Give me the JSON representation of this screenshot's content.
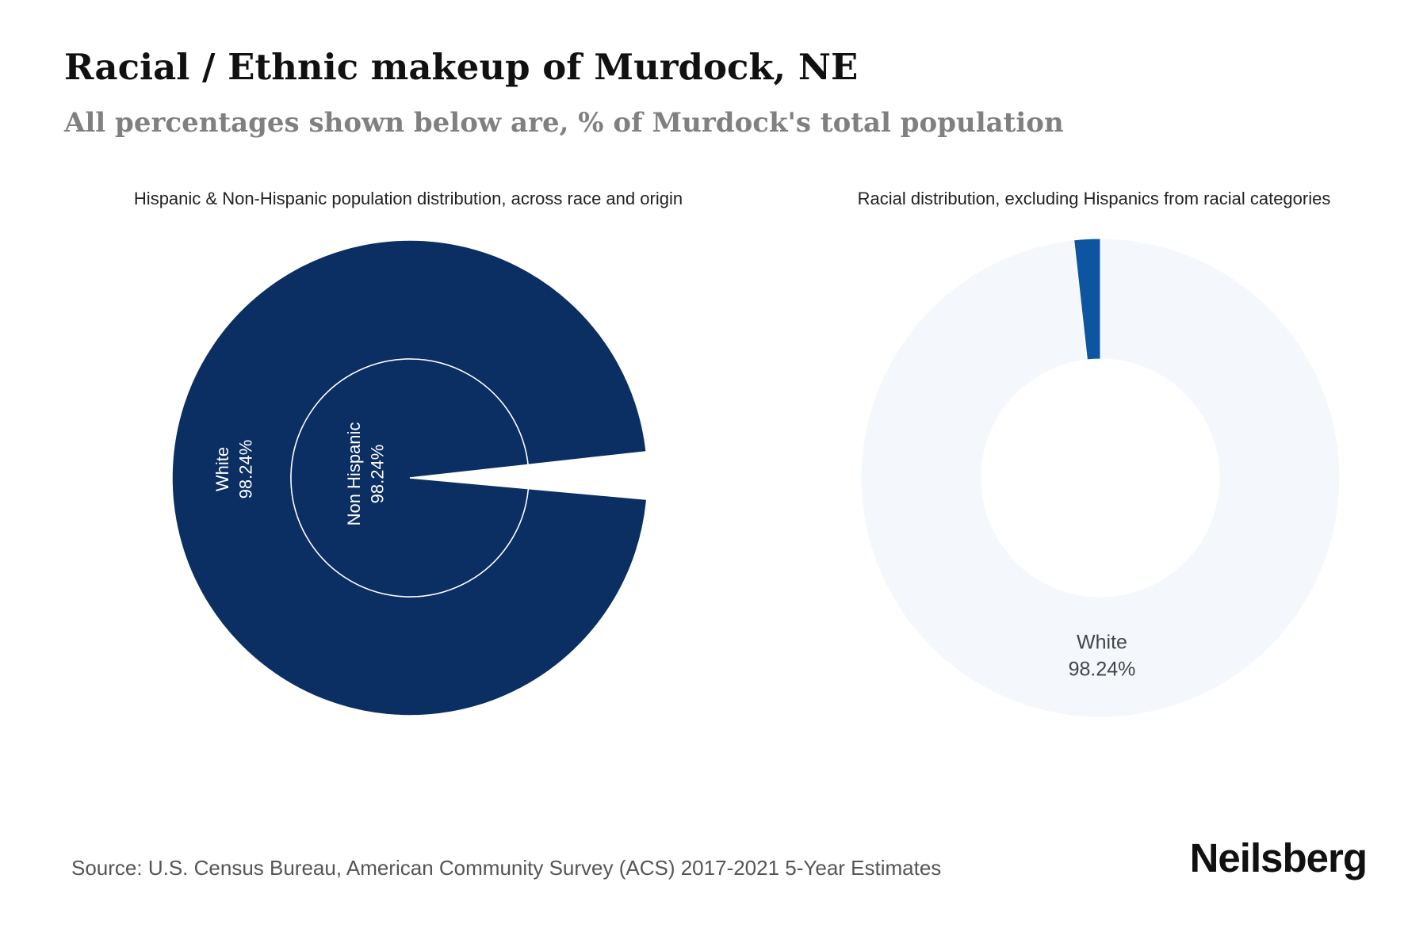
{
  "header": {
    "title": "Racial / Ethnic makeup of Murdock, NE",
    "subtitle": "All percentages shown below are, % of Murdock's total population"
  },
  "chart_data": [
    {
      "type": "pie",
      "title": "Hispanic & Non-Hispanic population distribution, across race and origin",
      "rings": {
        "inner": [
          {
            "label": "Non Hispanic",
            "value": 98.24,
            "value_label": "98.24%",
            "color": "#0b2e63"
          },
          {
            "label": "",
            "value": 1.76,
            "value_label": "",
            "color": "#ffffff"
          }
        ],
        "outer": [
          {
            "label": "White",
            "value": 98.24,
            "value_label": "98.24%",
            "color": "#0b2e63"
          },
          {
            "label": "",
            "value": 1.76,
            "value_label": "",
            "color": "#ffffff"
          }
        ]
      }
    },
    {
      "type": "pie",
      "title": "Racial distribution, excluding Hispanics from racial categories",
      "donut": true,
      "slices": [
        {
          "label": "White",
          "value": 98.24,
          "value_label": "98.24%",
          "color": "#f4f8fd"
        },
        {
          "label": "",
          "value": 1.76,
          "value_label": "",
          "color": "#0d55a0"
        }
      ]
    }
  ],
  "footer": {
    "source": "Source: U.S. Census Bureau, American Community Survey (ACS) 2017-2021 5-Year Estimates",
    "brand": "Neilsberg"
  }
}
